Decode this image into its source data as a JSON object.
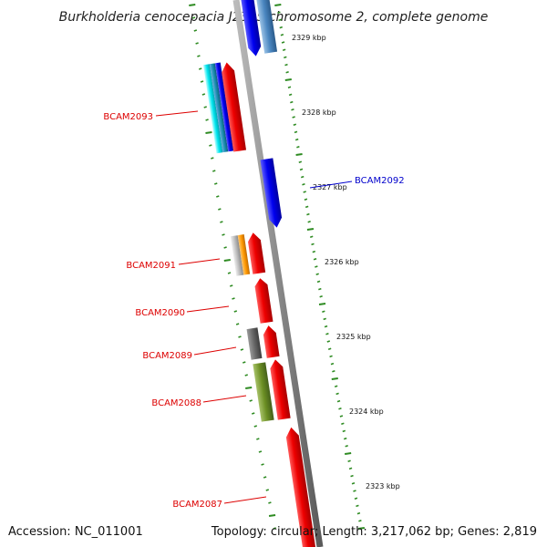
{
  "title": "Burkholderia cenocepacia J2315 chromosome 2, complete genome",
  "footer": {
    "accession": "Accession: NC_011001",
    "summary": "Topology: circular; Length: 3,217,062 bp; Genes: 2,819"
  },
  "colors": {
    "backbone": "#888888",
    "tick": "#2e8b22",
    "forward_label": "#dd0000",
    "reverse_label": "#0000cc"
  },
  "kbp_labels": [
    "2329 kbp",
    "2328 kbp",
    "2327 kbp",
    "2326 kbp",
    "2325 kbp",
    "2324 kbp",
    "2323 kbp"
  ],
  "gene_labels": {
    "BCAM2093": "BCAM2093",
    "BCAM2092": "BCAM2092",
    "BCAM2091": "BCAM2091",
    "BCAM2090": "BCAM2090",
    "BCAM2089": "BCAM2089",
    "BCAM2088": "BCAM2088",
    "BCAM2087": "BCAM2087"
  }
}
